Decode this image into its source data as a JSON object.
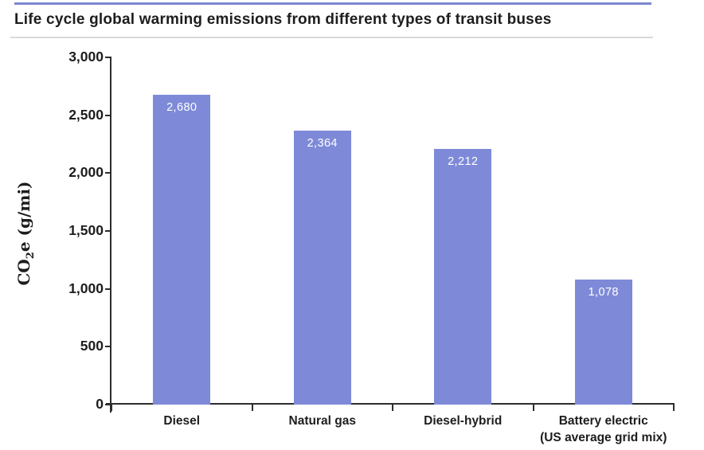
{
  "page": {
    "title": "Life cycle global warming emissions from different types of transit buses"
  },
  "colors": {
    "accent_line": "#7d86cf",
    "title_separator": "#d9d9d9",
    "axis": "#2d2d2d",
    "bar": "#7e8ad8",
    "title_text": "#1d1d1d",
    "tick_text": "#1d1d1d",
    "bar_label_text": "#ffffff"
  },
  "chart_data": {
    "type": "bar",
    "title": "Life cycle global warming emissions from different types of transit buses",
    "categories": [
      "Diesel",
      "Natural gas",
      "Diesel-hybrid",
      "Battery electric\n(US average grid mix)"
    ],
    "values": [
      2680,
      2364,
      2212,
      1078
    ],
    "value_labels": [
      "2,680",
      "2,364",
      "2,212",
      "1,078"
    ],
    "xlabel": "",
    "ylabel": "CO2e (g/mi)",
    "ylabel_parts": {
      "prefix": "CO",
      "sub": "2",
      "suffix": "e (g/mi)"
    },
    "ylim": [
      0,
      3000
    ],
    "ytick_step": 500,
    "ytick_labels": [
      "0",
      "500",
      "1,000",
      "1,500",
      "2,000",
      "2,500",
      "3,000"
    ],
    "grid": false,
    "legend": "none",
    "bar_color": "#7e8ad8",
    "data_label_position": "inside-top",
    "data_label_color": "#ffffff"
  }
}
